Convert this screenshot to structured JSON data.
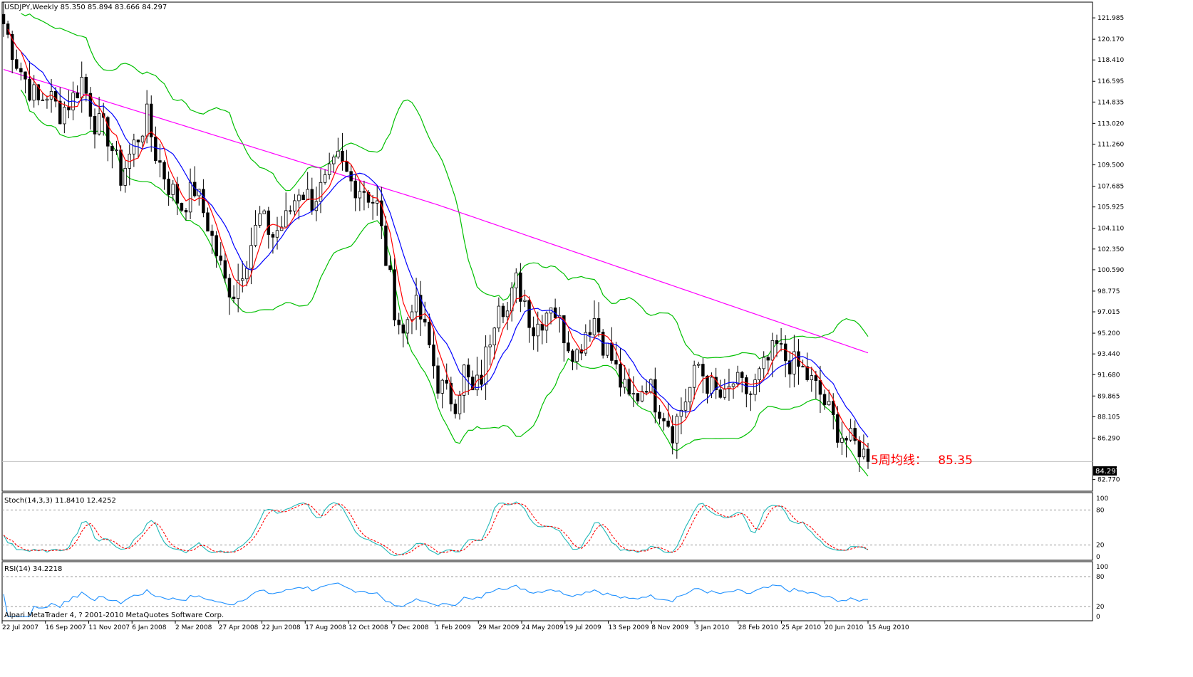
{
  "header": {
    "symbol_line": "USDJPY,Weekly  85.350 85.894 83.666 84.297"
  },
  "stoch_panel": {
    "label": "Stoch(14,3,3) 11.8410 12.4252",
    "levels": [
      "100",
      "80",
      "20",
      "0"
    ]
  },
  "rsi_panel": {
    "label": "RSI(14) 34.2218",
    "levels": [
      "100",
      "80",
      "20",
      "0"
    ]
  },
  "copyright": "Alpari MetaTrader 4, ? 2001-2010 MetaQuotes Software Corp.",
  "price_box": "84.297",
  "annotation": {
    "prefix": "5周均线：",
    "value": "85.35"
  },
  "colors": {
    "candle": "#000000",
    "ma_fast": "#ff0000",
    "ma_slow": "#0000ff",
    "bollinger": "#00c000",
    "ma_long": "#ff00ff",
    "stoch_main": "#20b8b8",
    "stoch_signal": "#ff0000",
    "rsi": "#1e90ff",
    "annotation": "#ff0000"
  },
  "chart_data": {
    "type": "candlestick",
    "title": "USDJPY,Weekly",
    "last_bar": {
      "open": 85.35,
      "high": 85.894,
      "low": 83.666,
      "close": 84.297
    },
    "ylim": [
      81.9,
      123.2
    ],
    "y_ticks": [
      "121.985",
      "120.170",
      "118.410",
      "116.595",
      "114.835",
      "113.020",
      "111.260",
      "109.500",
      "107.685",
      "105.925",
      "104.110",
      "102.350",
      "100.590",
      "98.775",
      "97.015",
      "95.200",
      "93.440",
      "91.680",
      "89.865",
      "88.105",
      "86.290",
      "82.770"
    ],
    "x_ticks": [
      "22 Jul 2007",
      "16 Sep 2007",
      "11 Nov 2007",
      "6 Jan 2008",
      "2 Mar 2008",
      "27 Apr 2008",
      "22 Jun 2008",
      "17 Aug 2008",
      "12 Oct 2008",
      "7 Dec 2008",
      "1 Feb 2009",
      "29 Mar 2009",
      "24 May 2009",
      "19 Jul 2009",
      "13 Sep 2009",
      "8 Nov 2009",
      "3 Jan 2010",
      "28 Feb 2010",
      "25 Apr 2010",
      "20 Jun 2010",
      "15 Aug 2010"
    ],
    "close_anchors": [
      [
        0,
        121.5
      ],
      [
        3,
        118.3
      ],
      [
        6,
        116.0
      ],
      [
        8,
        114.8
      ],
      [
        10,
        115.6
      ],
      [
        13,
        114.0
      ],
      [
        16,
        115.2
      ],
      [
        18,
        116.8
      ],
      [
        21,
        113.2
      ],
      [
        24,
        112.0
      ],
      [
        27,
        108.5
      ],
      [
        30,
        111.2
      ],
      [
        33,
        113.5
      ],
      [
        35,
        110.5
      ],
      [
        38,
        107.8
      ],
      [
        41,
        106.0
      ],
      [
        44,
        107.5
      ],
      [
        47,
        104.5
      ],
      [
        49,
        102.0
      ],
      [
        51,
        99.5
      ],
      [
        53,
        98.8
      ],
      [
        56,
        101.8
      ],
      [
        59,
        105.0
      ],
      [
        62,
        103.5
      ],
      [
        65,
        104.8
      ],
      [
        68,
        107.5
      ],
      [
        71,
        106.5
      ],
      [
        74,
        107.8
      ],
      [
        77,
        109.8
      ],
      [
        80,
        108.0
      ],
      [
        83,
        107.5
      ],
      [
        86,
        106.0
      ],
      [
        88,
        101.5
      ],
      [
        90,
        97.5
      ],
      [
        92,
        95.0
      ],
      [
        94,
        98.0
      ],
      [
        96,
        96.5
      ],
      [
        98,
        94.0
      ],
      [
        100,
        91.0
      ],
      [
        102,
        90.0
      ],
      [
        104,
        89.5
      ],
      [
        106,
        92.0
      ],
      [
        108,
        90.0
      ],
      [
        110,
        91.5
      ],
      [
        112,
        95.0
      ],
      [
        114,
        98.5
      ],
      [
        116,
        97.0
      ],
      [
        118,
        99.5
      ],
      [
        120,
        98.0
      ],
      [
        122,
        95.5
      ],
      [
        124,
        96.5
      ],
      [
        126,
        98.0
      ],
      [
        128,
        96.0
      ],
      [
        130,
        94.5
      ],
      [
        132,
        93.5
      ],
      [
        134,
        95.5
      ],
      [
        136,
        96.5
      ],
      [
        138,
        94.5
      ],
      [
        140,
        93.0
      ],
      [
        142,
        91.0
      ],
      [
        144,
        89.5
      ],
      [
        146,
        90.0
      ],
      [
        148,
        91.2
      ],
      [
        150,
        89.5
      ],
      [
        152,
        88.5
      ],
      [
        154,
        87.0
      ],
      [
        156,
        88.8
      ],
      [
        158,
        90.5
      ],
      [
        160,
        92.5
      ],
      [
        162,
        91.0
      ],
      [
        164,
        90.0
      ],
      [
        166,
        89.5
      ],
      [
        168,
        91.0
      ],
      [
        170,
        90.5
      ],
      [
        172,
        90.0
      ],
      [
        174,
        91.5
      ],
      [
        176,
        92.8
      ],
      [
        178,
        94.0
      ],
      [
        180,
        93.0
      ],
      [
        182,
        92.5
      ],
      [
        184,
        92.0
      ],
      [
        186,
        91.0
      ],
      [
        188,
        90.0
      ],
      [
        190,
        88.5
      ],
      [
        192,
        87.0
      ],
      [
        194,
        86.2
      ],
      [
        196,
        85.7
      ],
      [
        198,
        85.35
      ],
      [
        199,
        84.297
      ]
    ],
    "indicators": [
      "MA5",
      "MA10",
      "Bollinger Bands",
      "Long MA",
      "Stoch(14,3,3)",
      "RSI(14)"
    ],
    "stoch_current": {
      "main": 11.841,
      "signal": 12.4252
    },
    "rsi_current": 34.2218,
    "ma5_current": 85.35
  }
}
